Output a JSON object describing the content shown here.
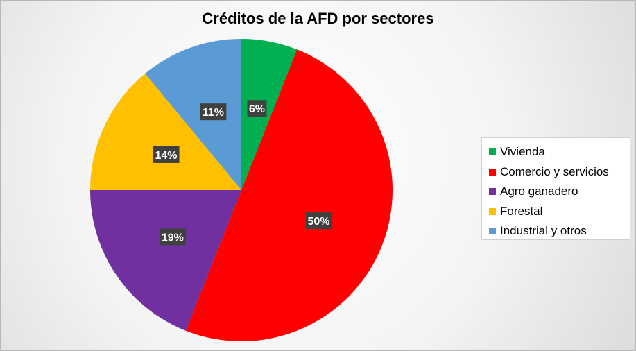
{
  "chart_data": {
    "type": "pie",
    "title": "Créditos de la AFD por sectores",
    "legend_position": "right",
    "slices": [
      {
        "label": "Vivienda",
        "value": 6,
        "display": "6%",
        "color": "#00b050"
      },
      {
        "label": "Comercio y servicios",
        "value": 50,
        "display": "50%",
        "color": "#ff0000"
      },
      {
        "label": "Agro ganadero",
        "value": 19,
        "display": "19%",
        "color": "#7030a0"
      },
      {
        "label": "Forestal",
        "value": 14,
        "display": "14%",
        "color": "#ffc000"
      },
      {
        "label": "Industrial y otros",
        "value": 11,
        "display": "11%",
        "color": "#5b9bd5"
      }
    ]
  }
}
